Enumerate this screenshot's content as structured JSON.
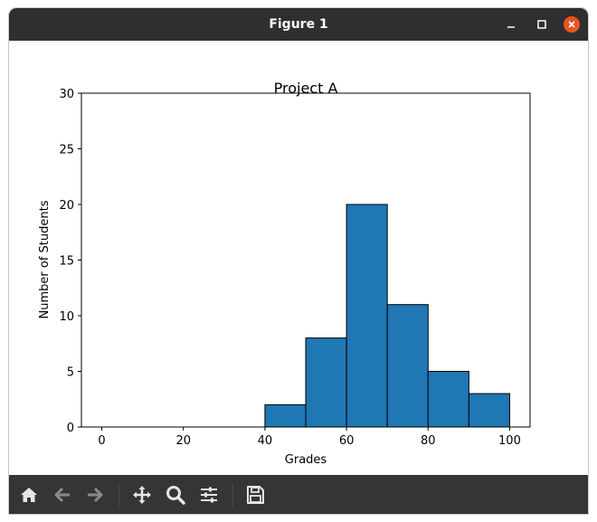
{
  "window": {
    "title": "Figure 1"
  },
  "toolbar": {
    "buttons": [
      {
        "name": "home-icon"
      },
      {
        "name": "back-arrow-icon"
      },
      {
        "name": "forward-arrow-icon"
      },
      {
        "name": "pan-icon"
      },
      {
        "name": "zoom-icon"
      },
      {
        "name": "configure-subplots-icon"
      },
      {
        "name": "save-icon"
      }
    ]
  },
  "chart_data": {
    "type": "bar",
    "title": "Project A",
    "xlabel": "Grades",
    "ylabel": "Number of Students",
    "bins": [
      [
        40,
        50
      ],
      [
        50,
        60
      ],
      [
        60,
        70
      ],
      [
        70,
        80
      ],
      [
        80,
        90
      ],
      [
        90,
        100
      ]
    ],
    "values": [
      2,
      8,
      20,
      11,
      5,
      3
    ],
    "xlim": [
      -5,
      105
    ],
    "ylim": [
      0,
      30
    ],
    "xticks": [
      "0",
      "20",
      "40",
      "60",
      "80",
      "100"
    ],
    "yticks": [
      "0",
      "5",
      "10",
      "15",
      "20",
      "25",
      "30"
    ],
    "xtick_values": [
      0,
      20,
      40,
      60,
      80,
      100
    ],
    "ytick_values": [
      0,
      5,
      10,
      15,
      20,
      25,
      30
    ],
    "bar_color": "#1f77b4",
    "edge_color": "#000000",
    "grid": false
  }
}
